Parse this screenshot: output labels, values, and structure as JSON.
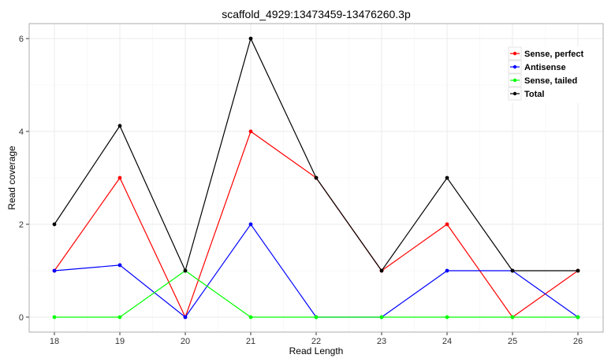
{
  "chart_data": {
    "type": "line",
    "title": "scaffold_4929:13473459-13476260.3p",
    "xlabel": "Read Length",
    "ylabel": "Read coverage",
    "x": [
      18,
      19,
      20,
      21,
      22,
      23,
      24,
      25,
      26
    ],
    "xlim": [
      17.6,
      26.4
    ],
    "ylim": [
      -0.33,
      6.3
    ],
    "yticks": [
      0,
      2,
      4,
      6
    ],
    "grid": true,
    "legend_position": "top-right",
    "series": [
      {
        "name": "Sense, perfect",
        "color": "#ff0000",
        "values": [
          1,
          3,
          0,
          4,
          3,
          1,
          2,
          0,
          1
        ]
      },
      {
        "name": "Antisense",
        "color": "#0000ff",
        "values": [
          1,
          1.12,
          0,
          2,
          0,
          0,
          1,
          1,
          0
        ]
      },
      {
        "name": "Sense, tailed",
        "color": "#00ff00",
        "values": [
          0,
          0,
          1,
          0,
          0,
          0,
          0,
          0,
          0
        ]
      },
      {
        "name": "Total",
        "color": "#000000",
        "values": [
          2,
          4.12,
          1,
          6,
          3,
          1,
          3,
          1,
          1
        ]
      }
    ]
  }
}
